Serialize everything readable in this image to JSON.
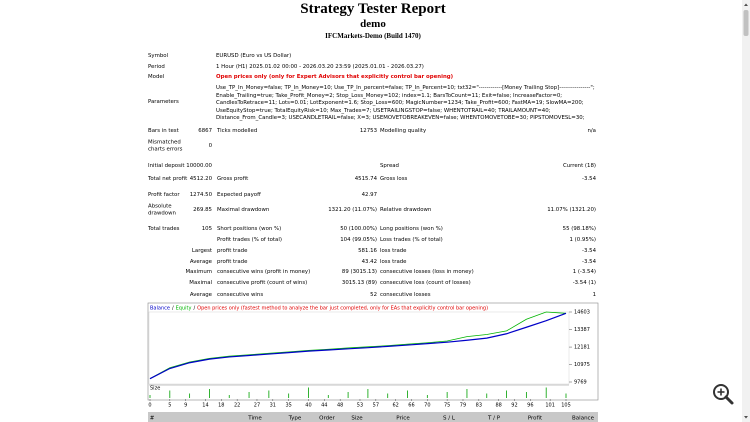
{
  "header": {
    "title": "Strategy Tester Report",
    "subtitle": "demo",
    "server": "IFCMarkets-Demo (Build 1470)"
  },
  "info": [
    {
      "label": "Symbol",
      "value": "EURUSD (Euro vs US Dollar)"
    },
    {
      "label": "Period",
      "value": "1 Hour (H1) 2025.01.02 00:00 - 2026.03.20 23:59 (2025.01.01 - 2026.03.27)"
    },
    {
      "label": "Model",
      "value": "Open prices only (only for Expert Advisors that explicitly control bar opening)"
    }
  ],
  "parameters": {
    "label": "Parameters",
    "lines": [
      "Use_TP_In_Money=false; TP_In_Money=10; Use_TP_In_percent=false; TP_In_Percent=10; txt32=\"------------[Money Trailing Stop]----------------\";",
      "Enable_Trailing=true; Take_Profit_Money=2; Stop_Loss_Money=102; index=1.1; BarsToCount=11; Exit=false; IncreaseFactor=0;",
      "CandlesToRetrace=11; Lots=0.01; LotExponent=1.6; Stop_Loss=600; MagicNumber=1234; Take_Profit=600; FastMA=19; SlowMA=200;",
      "UseEquityStop=true; TotalEquityRisk=10; Max_Trades=7; USETRAILINGSTOP=false; WHENTOTRAIL=40; TRAILAMOUNT=40;",
      "Distance_From_Candle=3; USECANDLETRAIL=false; X=3; USEMOVETOBREAKEVEN=false; WHENTOMOVETOBE=30; PIPSTOMOVESL=30;"
    ]
  },
  "summary": {
    "rows": [
      [
        "Bars in test",
        "6867",
        "Ticks modelled",
        "12753",
        "Modelling quality",
        "n/a"
      ],
      [
        "Mismatched charts errors",
        "0"
      ],
      [
        "Initial deposit",
        "10000.00",
        null,
        null,
        "Spread",
        "Current (18)"
      ],
      [
        "Total net profit",
        "4512.20",
        "Gross profit",
        "4515.74",
        "Gross loss",
        "-3.54"
      ],
      [
        "Profit factor",
        "1274.50",
        "Expected payoff",
        "42.97"
      ],
      [
        "Absolute drawdown",
        "269.85",
        "Maximal drawdown",
        "1321.20 (11.07%)",
        "Relative drawdown",
        "11.07% (1321.20)"
      ],
      [
        "Total trades",
        "105",
        "Short positions (won %)",
        "50 (100.00%)",
        "Long positions (won %)",
        "55 (98.18%)"
      ],
      [
        null,
        null,
        "Profit trades (% of total)",
        "104 (99.05%)",
        "Loss trades (% of total)",
        "1 (0.95%)"
      ],
      [
        null,
        "Largest",
        "profit trade",
        "581.16",
        "loss trade",
        "-3.54"
      ],
      [
        null,
        "Average",
        "profit trade",
        "43.42",
        "loss trade",
        "-3.54"
      ],
      [
        null,
        "Maximum",
        "consecutive wins (profit in money)",
        "89 (3015.13)",
        "consecutive losses (loss in money)",
        "1 (-3.54)"
      ],
      [
        null,
        "Maximal",
        "consecutive profit (count of wins)",
        "3015.13 (89)",
        "consecutive loss (count of losses)",
        "-3.54 (1)"
      ],
      [
        null,
        "Average",
        "consecutive wins",
        "52",
        "consecutive losses",
        "1"
      ]
    ]
  },
  "chart": {
    "type": "line",
    "legend": [
      "Balance",
      "Equity",
      "Open prices only (fastest method to analyze the bar just completed, only for EAs that explicitly control bar opening)"
    ],
    "legend_separator": "/",
    "x": [
      0,
      5,
      10,
      15,
      20,
      25,
      30,
      35,
      40,
      45,
      50,
      55,
      60,
      65,
      70,
      75,
      80,
      85,
      90,
      95,
      100,
      105
    ],
    "series": [
      {
        "name": "Balance",
        "color": "#0000c8",
        "values": [
          10000,
          10700,
          11100,
          11350,
          11500,
          11600,
          11700,
          11800,
          11900,
          11980,
          12060,
          12140,
          12230,
          12320,
          12420,
          12520,
          12650,
          12800,
          13100,
          13550,
          14000,
          14512
        ]
      },
      {
        "name": "Equity",
        "color": "#00b400",
        "values": [
          10000,
          10750,
          11150,
          11400,
          11550,
          11650,
          11750,
          11850,
          11950,
          12030,
          12120,
          12200,
          12280,
          12380,
          12480,
          12600,
          12900,
          13050,
          13300,
          14100,
          14603,
          14512
        ]
      }
    ],
    "xlim": [
      0,
      105
    ],
    "ylim": [
      9769,
      14603
    ],
    "yticks": [
      9769,
      10975,
      12181,
      13387,
      14603
    ],
    "xticks": [
      0,
      5,
      9,
      14,
      18,
      22,
      27,
      31,
      35,
      40,
      44,
      48,
      53,
      57,
      62,
      66,
      70,
      75,
      79,
      83,
      88,
      92,
      96,
      101,
      105
    ],
    "size_label": "Size",
    "size_color": "#00a000",
    "size_lim": [
      0,
      0.08
    ],
    "sizes": [
      0.02,
      0.05,
      0.03,
      0.06,
      0.02,
      0.04,
      0.05,
      0.03,
      0.07,
      0.02,
      0.04,
      0.06,
      0.03,
      0.05,
      0.02,
      0.04,
      0.06,
      0.03,
      0.05,
      0.04,
      0.07,
      0.03
    ]
  },
  "trades_table": {
    "columns": [
      "#",
      "Time",
      "Type",
      "Order",
      "Size",
      "Price",
      "S / L",
      "T / P",
      "Profit",
      "Balance"
    ]
  }
}
